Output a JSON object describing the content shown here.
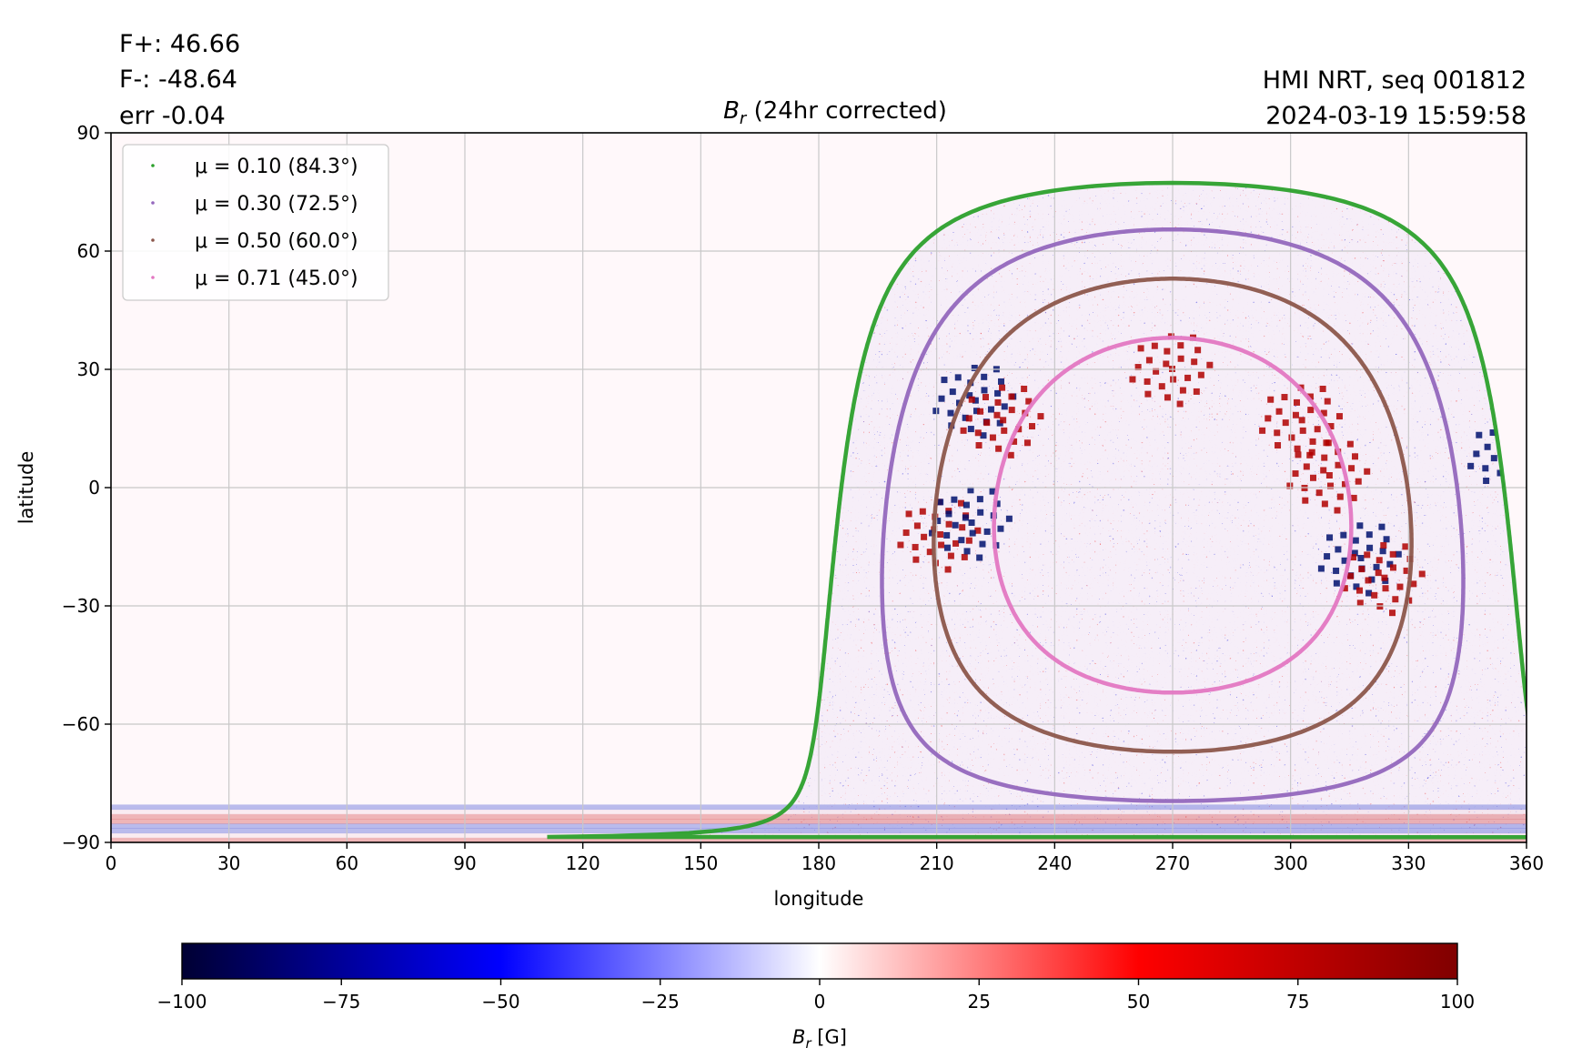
{
  "header": {
    "flux_positive": "F+: 46.66",
    "flux_negative": "F-: -48.64",
    "error": "err -0.04",
    "source": "HMI NRT, seq 001812",
    "timestamp": "2024-03-19 15:59:58"
  },
  "chart_data": {
    "type": "heatmap",
    "title": "B_r (24hr corrected)",
    "title_main": "B",
    "title_sub": "r",
    "title_rest": " (24hr corrected)",
    "xlabel": "longitude",
    "ylabel": "latitude",
    "xlim": [
      0,
      360
    ],
    "ylim": [
      -90,
      90
    ],
    "grid": true,
    "x_ticks": [
      0,
      30,
      60,
      90,
      120,
      150,
      180,
      210,
      240,
      270,
      300,
      330,
      360
    ],
    "y_ticks": [
      90,
      60,
      30,
      0,
      -30,
      -60,
      -90
    ],
    "y_tick_labels": [
      "90",
      "60",
      "30",
      "0",
      "−30",
      "−60",
      "−90"
    ],
    "disk_center": {
      "longitude": 270,
      "latitude": -7
    },
    "legend": {
      "placement": "upper-left",
      "entries": [
        {
          "label": "μ = 0.10 (84.3°)",
          "mu": 0.1,
          "angle_deg": 84.3,
          "color": "#2ca02c"
        },
        {
          "label": "μ = 0.30 (72.5°)",
          "mu": 0.3,
          "angle_deg": 72.5,
          "color": "#9467bd"
        },
        {
          "label": "μ = 0.50 (60.0°)",
          "mu": 0.5,
          "angle_deg": 60.0,
          "color": "#8c564b"
        },
        {
          "label": "μ = 0.71 (45.0°)",
          "mu": 0.71,
          "angle_deg": 45.0,
          "color": "#e377c2"
        }
      ]
    },
    "active_regions": [
      {
        "longitude": 220,
        "latitude": 22,
        "polarity": "negative"
      },
      {
        "longitude": 227,
        "latitude": 17,
        "polarity": "positive"
      },
      {
        "longitude": 211,
        "latitude": -12,
        "polarity": "positive"
      },
      {
        "longitude": 219,
        "latitude": -9,
        "polarity": "negative"
      },
      {
        "longitude": 310,
        "latitude": 3,
        "polarity": "positive"
      },
      {
        "longitude": 318,
        "latitude": -18,
        "polarity": "negative"
      },
      {
        "longitude": 324,
        "latitude": -23,
        "polarity": "positive"
      },
      {
        "longitude": 270,
        "latitude": 30,
        "polarity": "positive"
      },
      {
        "longitude": 303,
        "latitude": 17,
        "polarity": "positive"
      },
      {
        "longitude": 356,
        "latitude": 8,
        "polarity": "negative"
      }
    ],
    "colorbar": {
      "min": -100,
      "max": 100,
      "ticks": [
        -100,
        -75,
        -50,
        -25,
        0,
        25,
        50,
        75,
        100
      ],
      "tick_labels": [
        "−100",
        "−75",
        "−50",
        "−25",
        "0",
        "25",
        "50",
        "75",
        "100"
      ],
      "label_main": "B",
      "label_sub": "r",
      "label_unit": " [G]",
      "colormap": "seismic",
      "colors": [
        "#000033",
        "#0000ff",
        "#ffffff",
        "#ff0000",
        "#800000"
      ]
    }
  }
}
